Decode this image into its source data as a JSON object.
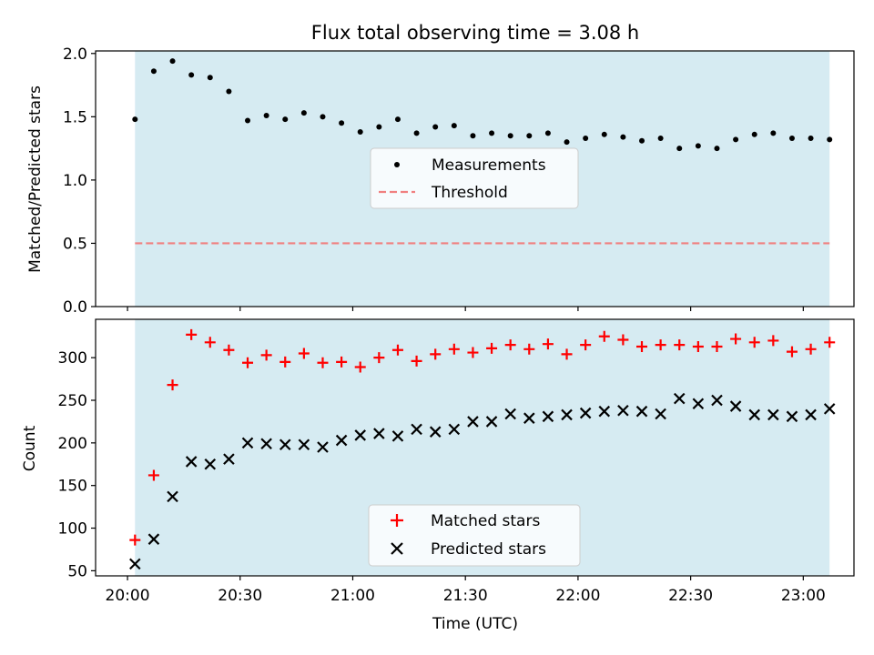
{
  "chart_data": [
    {
      "type": "scatter",
      "title": "Flux total observing time = 3.08 h",
      "xlabel": "",
      "ylabel": "Matched/Predicted stars",
      "ylim": [
        0,
        2.02
      ],
      "yticks": [
        "0.0",
        "0.5",
        "1.0",
        "1.5",
        "2.0"
      ],
      "shaded_region": {
        "x": [
          "20:02",
          "23:07"
        ],
        "color": "#add8e6"
      },
      "legend_position": "center",
      "series": [
        {
          "name": "Measurements",
          "marker": "dot",
          "color": "#000000",
          "x": [
            "20:02",
            "20:07",
            "20:12",
            "20:17",
            "20:22",
            "20:27",
            "20:32",
            "20:37",
            "20:42",
            "20:47",
            "20:52",
            "20:57",
            "21:02",
            "21:07",
            "21:12",
            "21:17",
            "21:22",
            "21:27",
            "21:32",
            "21:37",
            "21:42",
            "21:47",
            "21:52",
            "21:57",
            "22:02",
            "22:07",
            "22:12",
            "22:17",
            "22:22",
            "22:27",
            "22:32",
            "22:37",
            "22:42",
            "22:47",
            "22:52",
            "22:57",
            "23:02",
            "23:07"
          ],
          "y": [
            1.48,
            1.86,
            1.94,
            1.83,
            1.81,
            1.7,
            1.47,
            1.51,
            1.48,
            1.53,
            1.5,
            1.45,
            1.38,
            1.42,
            1.48,
            1.37,
            1.42,
            1.43,
            1.35,
            1.37,
            1.35,
            1.35,
            1.37,
            1.3,
            1.33,
            1.36,
            1.34,
            1.31,
            1.33,
            1.25,
            1.27,
            1.25,
            1.32,
            1.36,
            1.37,
            1.33,
            1.33,
            1.32
          ]
        },
        {
          "name": "Threshold",
          "marker": "dashed-line",
          "color": "#f08080",
          "x": [
            "20:02",
            "23:07"
          ],
          "y": [
            0.5,
            0.5
          ]
        }
      ]
    },
    {
      "type": "scatter",
      "title": "",
      "xlabel": "Time (UTC)",
      "ylabel": "Count",
      "ylim": [
        44,
        345
      ],
      "yticks": [
        "50",
        "100",
        "150",
        "200",
        "250",
        "300"
      ],
      "xticks": [
        "20:00",
        "20:30",
        "21:00",
        "21:30",
        "22:00",
        "22:30",
        "23:00"
      ],
      "shaded_region": {
        "x": [
          "20:02",
          "23:07"
        ],
        "color": "#add8e6"
      },
      "legend_position": "lower center",
      "x": [
        "20:02",
        "20:07",
        "20:12",
        "20:17",
        "20:22",
        "20:27",
        "20:32",
        "20:37",
        "20:42",
        "20:47",
        "20:52",
        "20:57",
        "21:02",
        "21:07",
        "21:12",
        "21:17",
        "21:22",
        "21:27",
        "21:32",
        "21:37",
        "21:42",
        "21:47",
        "21:52",
        "21:57",
        "22:02",
        "22:07",
        "22:12",
        "22:17",
        "22:22",
        "22:27",
        "22:32",
        "22:37",
        "22:42",
        "22:47",
        "22:52",
        "22:57",
        "23:02",
        "23:07"
      ],
      "series": [
        {
          "name": "Matched stars",
          "marker": "plus",
          "color": "#ff0000",
          "values": [
            86,
            162,
            268,
            327,
            318,
            309,
            294,
            303,
            295,
            305,
            294,
            295,
            289,
            300,
            309,
            296,
            304,
            310,
            306,
            311,
            315,
            310,
            316,
            304,
            315,
            325,
            321,
            313,
            315,
            315,
            313,
            313,
            322,
            318,
            320,
            307,
            310,
            318
          ]
        },
        {
          "name": "Predicted stars",
          "marker": "x",
          "color": "#000000",
          "values": [
            58,
            87,
            137,
            178,
            175,
            181,
            200,
            199,
            198,
            198,
            195,
            203,
            209,
            211,
            208,
            216,
            213,
            216,
            225,
            225,
            234,
            229,
            231,
            233,
            235,
            237,
            238,
            237,
            234,
            252,
            246,
            250,
            243,
            233,
            233,
            231,
            233,
            240
          ]
        }
      ]
    }
  ]
}
